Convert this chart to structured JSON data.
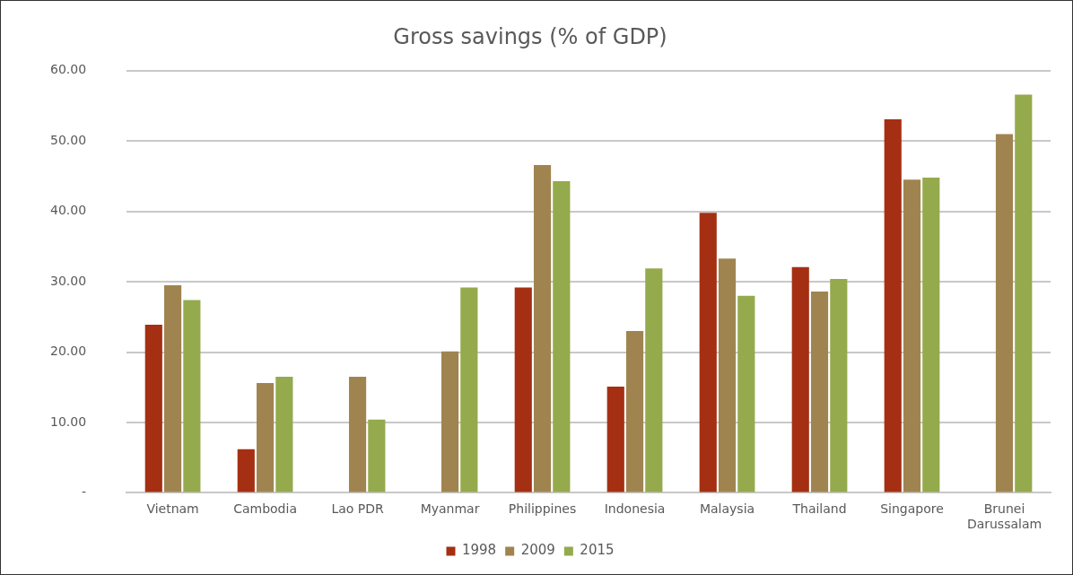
{
  "chart_data": {
    "type": "bar",
    "title": "Gross savings (% of GDP)",
    "categories": [
      "Vietnam",
      "Cambodia",
      "Lao PDR",
      "Myanmar",
      "Philippines",
      "Indonesia",
      "Malaysia",
      "Thailand",
      "Singapore",
      "Brunei Darussalam"
    ],
    "series": [
      {
        "name": "1998",
        "color": "#a52f12",
        "values": [
          23.9,
          6.2,
          null,
          null,
          29.2,
          15.1,
          39.8,
          32.1,
          53.1,
          null
        ]
      },
      {
        "name": "2009",
        "color": "#a08450",
        "values": [
          29.5,
          15.6,
          16.5,
          20.1,
          46.6,
          23.0,
          33.3,
          28.6,
          44.5,
          51.0
        ]
      },
      {
        "name": "2015",
        "color": "#94aa4c",
        "values": [
          27.4,
          16.5,
          10.4,
          29.2,
          44.3,
          31.9,
          28.0,
          30.4,
          44.8,
          56.6
        ]
      }
    ],
    "ylim": [
      0,
      60
    ],
    "yticks": [
      {
        "value": 0,
        "label": "-"
      },
      {
        "value": 10,
        "label": "10.00"
      },
      {
        "value": 20,
        "label": "20.00"
      },
      {
        "value": 30,
        "label": "30.00"
      },
      {
        "value": 40,
        "label": "40.00"
      },
      {
        "value": 50,
        "label": "50.00"
      },
      {
        "value": 60,
        "label": "60.00"
      }
    ],
    "grid": "y",
    "legend": "bottom"
  }
}
